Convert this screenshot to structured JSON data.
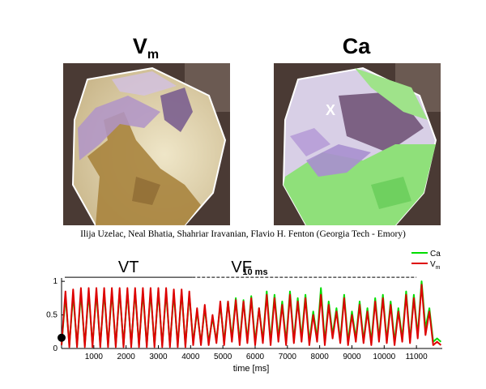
{
  "panels": {
    "left_title": "V",
    "left_subscript": "m",
    "right_title": "Ca",
    "marker": "X"
  },
  "credits": "Ilija Uzelac, Neal Bhatia, Shahriar Iravanian, Flavio H. Fenton (Georgia Tech - Emory)",
  "colors": {
    "ca": "#00dd00",
    "vm": "#dd0000",
    "vm_map_tan": "#cfc08a",
    "ca_map_green": "#8fe07a",
    "purple": "#9a78b8",
    "marker": "#000000"
  },
  "chart_data": {
    "type": "line",
    "xlabel": "time [ms]",
    "ylabel": "",
    "xlim": [
      0,
      11800
    ],
    "ylim": [
      0,
      1.05
    ],
    "xticks": [
      1000,
      2000,
      3000,
      4000,
      5000,
      6000,
      7000,
      8000,
      9000,
      10000,
      11000
    ],
    "yticks": [
      0,
      0.5,
      1
    ],
    "ytick_labels": [
      "0",
      "0.5",
      "1"
    ],
    "legend": {
      "position": "top-right",
      "entries": [
        "Ca",
        "V",
        "m"
      ]
    },
    "annotations": {
      "vt": "VT",
      "vf": "VF",
      "scale_bar": "10 ms",
      "vt_range": [
        100,
        4050
      ],
      "vf_range": [
        4050,
        11000
      ],
      "bracket_level": 1.06
    },
    "current_time_marker": {
      "x": 0,
      "y": 0.16
    },
    "series": [
      {
        "name": "Ca",
        "color": "#00dd00",
        "x": [
          0,
          120,
          240,
          360,
          480,
          600,
          720,
          840,
          960,
          1080,
          1200,
          1320,
          1440,
          1560,
          1680,
          1800,
          1920,
          2040,
          2160,
          2280,
          2400,
          2520,
          2640,
          2760,
          2880,
          3000,
          3120,
          3240,
          3360,
          3480,
          3600,
          3720,
          3840,
          3960,
          4080,
          4200,
          4320,
          4440,
          4560,
          4680,
          4800,
          4920,
          5040,
          5160,
          5280,
          5400,
          5520,
          5640,
          5760,
          5880,
          6000,
          6120,
          6240,
          6360,
          6480,
          6600,
          6720,
          6840,
          6960,
          7080,
          7200,
          7320,
          7440,
          7560,
          7680,
          7800,
          7920,
          8040,
          8160,
          8280,
          8400,
          8520,
          8640,
          8760,
          8880,
          9000,
          9120,
          9240,
          9360,
          9480,
          9600,
          9720,
          9840,
          9960,
          10080,
          10200,
          10320,
          10440,
          10560,
          10680,
          10800,
          10920,
          11040,
          11160,
          11280,
          11400,
          11520,
          11640,
          11760
        ],
        "y": [
          0.05,
          0.78,
          0.05,
          0.8,
          0.05,
          0.82,
          0.05,
          0.83,
          0.05,
          0.83,
          0.05,
          0.84,
          0.05,
          0.84,
          0.05,
          0.85,
          0.05,
          0.85,
          0.05,
          0.85,
          0.05,
          0.84,
          0.05,
          0.84,
          0.05,
          0.85,
          0.05,
          0.84,
          0.05,
          0.82,
          0.05,
          0.84,
          0.05,
          0.8,
          0.1,
          0.55,
          0.08,
          0.6,
          0.1,
          0.45,
          0.12,
          0.65,
          0.1,
          0.7,
          0.15,
          0.75,
          0.1,
          0.72,
          0.12,
          0.78,
          0.1,
          0.6,
          0.12,
          0.85,
          0.1,
          0.8,
          0.15,
          0.7,
          0.1,
          0.85,
          0.12,
          0.75,
          0.15,
          0.8,
          0.1,
          0.55,
          0.15,
          0.9,
          0.1,
          0.7,
          0.2,
          0.6,
          0.12,
          0.8,
          0.1,
          0.55,
          0.15,
          0.7,
          0.12,
          0.6,
          0.1,
          0.75,
          0.15,
          0.8,
          0.12,
          0.7,
          0.1,
          0.6,
          0.15,
          0.85,
          0.12,
          0.8,
          0.2,
          1.0,
          0.3,
          0.6,
          0.1,
          0.15,
          0.1
        ]
      },
      {
        "name": "Vm",
        "color": "#dd0000",
        "x": [
          0,
          120,
          240,
          360,
          480,
          600,
          720,
          840,
          960,
          1080,
          1200,
          1320,
          1440,
          1560,
          1680,
          1800,
          1920,
          2040,
          2160,
          2280,
          2400,
          2520,
          2640,
          2760,
          2880,
          3000,
          3120,
          3240,
          3360,
          3480,
          3600,
          3720,
          3840,
          3960,
          4080,
          4200,
          4320,
          4440,
          4560,
          4680,
          4800,
          4920,
          5040,
          5160,
          5280,
          5400,
          5520,
          5640,
          5760,
          5880,
          6000,
          6120,
          6240,
          6360,
          6480,
          6600,
          6720,
          6840,
          6960,
          7080,
          7200,
          7320,
          7440,
          7560,
          7680,
          7800,
          7920,
          8040,
          8160,
          8280,
          8400,
          8520,
          8640,
          8760,
          8880,
          9000,
          9120,
          9240,
          9360,
          9480,
          9600,
          9720,
          9840,
          9960,
          10080,
          10200,
          10320,
          10440,
          10560,
          10680,
          10800,
          10920,
          11040,
          11160,
          11280,
          11400,
          11520,
          11640,
          11760
        ],
        "y": [
          0.05,
          0.85,
          0.02,
          0.88,
          0.02,
          0.9,
          0.02,
          0.9,
          0.02,
          0.9,
          0.02,
          0.9,
          0.02,
          0.9,
          0.02,
          0.9,
          0.02,
          0.9,
          0.02,
          0.9,
          0.02,
          0.9,
          0.02,
          0.9,
          0.02,
          0.9,
          0.02,
          0.9,
          0.02,
          0.88,
          0.02,
          0.88,
          0.02,
          0.85,
          0.05,
          0.6,
          0.05,
          0.65,
          0.05,
          0.5,
          0.08,
          0.7,
          0.05,
          0.7,
          0.1,
          0.72,
          0.05,
          0.7,
          0.08,
          0.75,
          0.05,
          0.6,
          0.08,
          0.8,
          0.05,
          0.75,
          0.1,
          0.65,
          0.05,
          0.8,
          0.08,
          0.7,
          0.1,
          0.75,
          0.05,
          0.5,
          0.1,
          0.8,
          0.05,
          0.65,
          0.15,
          0.55,
          0.08,
          0.75,
          0.05,
          0.5,
          0.1,
          0.65,
          0.08,
          0.55,
          0.05,
          0.7,
          0.1,
          0.75,
          0.08,
          0.65,
          0.05,
          0.55,
          0.1,
          0.8,
          0.08,
          0.75,
          0.15,
          0.95,
          0.2,
          0.55,
          0.05,
          0.1,
          0.05
        ]
      }
    ]
  }
}
